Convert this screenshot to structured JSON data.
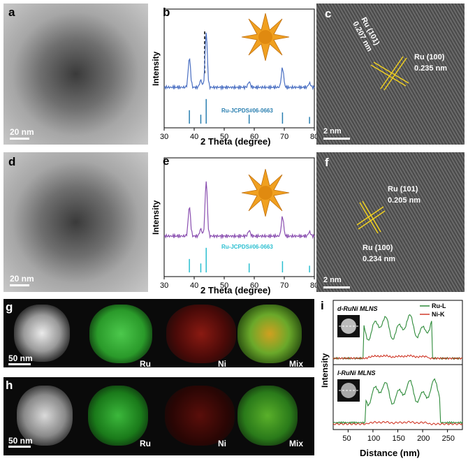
{
  "panels": {
    "a": {
      "label": "a",
      "scale": "20 nm"
    },
    "b": {
      "label": "b",
      "ref": "Ru-JCPDS#06-0663"
    },
    "c": {
      "label": "c",
      "scale": "2 nm",
      "lattice1": "Ru (101)",
      "lattice1_d": "0.207 nm",
      "lattice2": "Ru (100)",
      "lattice2_d": "0.235 nm"
    },
    "d": {
      "label": "d",
      "scale": "20 nm"
    },
    "e": {
      "label": "e",
      "ref": "Ru-JCPDS#06-0663"
    },
    "f": {
      "label": "f",
      "scale": "2 nm",
      "lattice1": "Ru (101)",
      "lattice1_d": "0.205 nm",
      "lattice2": "Ru (100)",
      "lattice2_d": "0.234 nm"
    },
    "g": {
      "label": "g",
      "scale": "50 nm",
      "ch1": "Ru",
      "ch2": "Ni",
      "ch3": "Mix"
    },
    "h": {
      "label": "h",
      "scale": "50 nm",
      "ch1": "Ru",
      "ch2": "Ni",
      "ch3": "Mix"
    },
    "i": {
      "label": "i",
      "top_title": "d-RuNi MLNS",
      "bottom_title": "l-RuNi MLNS"
    }
  },
  "chart_data": [
    {
      "type": "line",
      "panel": "b",
      "xlabel": "2 Theta (degree)",
      "ylabel": "Intensity",
      "xlim": [
        30,
        80
      ],
      "xticks": [
        "30",
        "40",
        "50",
        "60",
        "70",
        "80"
      ],
      "color": "#4a6fc2",
      "peaks": [
        38.4,
        42.2,
        44.0,
        58.3,
        69.4,
        78.4
      ],
      "reference_lines": [
        38.4,
        42.2,
        44.0,
        58.3,
        69.4,
        78.4
      ],
      "reference_color": "#2a7fb0"
    },
    {
      "type": "line",
      "panel": "e",
      "xlabel": "2 Theta (degree)",
      "ylabel": "Intensity",
      "xlim": [
        30,
        80
      ],
      "xticks": [
        "30",
        "40",
        "50",
        "60",
        "70",
        "80"
      ],
      "color": "#8a4fb0",
      "peaks": [
        38.4,
        42.2,
        44.0,
        58.3,
        69.4,
        78.4
      ],
      "reference_lines": [
        38.4,
        42.2,
        44.0,
        58.3,
        69.4,
        78.4
      ],
      "reference_color": "#2abfd0"
    },
    {
      "type": "line",
      "panel": "i",
      "xlabel": "Distance (nm)",
      "ylabel": "Intensity",
      "xlim": [
        20,
        280
      ],
      "xticks": [
        "50",
        "100",
        "150",
        "200",
        "250"
      ],
      "series": [
        {
          "name": "Ru-L",
          "color": "#2e8b3a"
        },
        {
          "name": "Ni-K",
          "color": "#d03a2a"
        }
      ]
    }
  ]
}
